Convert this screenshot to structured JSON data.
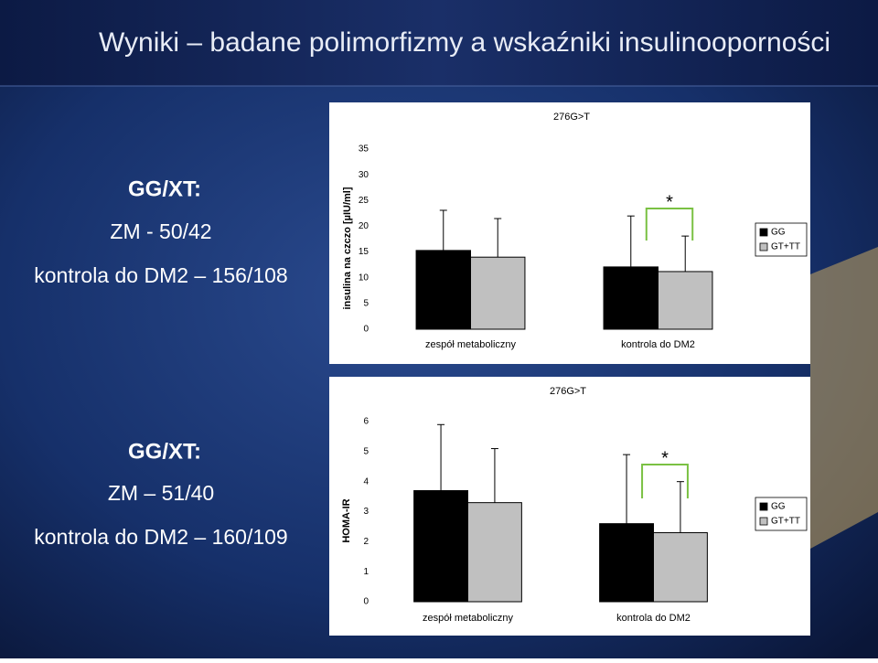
{
  "slide": {
    "title": "Wyniki – badane polimorfizmy a wskaźniki insulinooporności",
    "blocks": [
      {
        "heading": "GG/XT:",
        "lines": [
          "ZM - 50/42",
          "kontrola do DM2 – 156/108"
        ]
      },
      {
        "heading": "GG/XT:",
        "lines": [
          "ZM – 51/40",
          "kontrola do DM2 – 160/109"
        ]
      }
    ]
  },
  "chart_data": [
    {
      "type": "bar",
      "title": "276G>T",
      "y_label": "insulina na czczo [µIU/ml]",
      "categories": [
        "zespół metaboliczny",
        "kontrola do DM2"
      ],
      "series": [
        {
          "name": "GG",
          "color": "#000000",
          "values": [
            15.3,
            12.1
          ],
          "errors": [
            7.8,
            9.9
          ]
        },
        {
          "name": "GT+TT",
          "color": "#c0c0c0",
          "values": [
            14.0,
            11.2
          ],
          "errors": [
            7.5,
            6.9
          ]
        }
      ],
      "ylim": [
        0,
        35
      ],
      "yticks": [
        0,
        5,
        10,
        15,
        20,
        25,
        30,
        35
      ],
      "annotations": [
        "*"
      ],
      "legend": "right",
      "grid": false
    },
    {
      "type": "bar",
      "title": "276G>T",
      "y_label": "HOMA-IR",
      "categories": [
        "zespół metaboliczny",
        "kontrola do DM2"
      ],
      "series": [
        {
          "name": "GG",
          "color": "#000000",
          "values": [
            3.7,
            2.6
          ],
          "errors": [
            2.2,
            2.3
          ]
        },
        {
          "name": "GT+TT",
          "color": "#c0c0c0",
          "values": [
            3.3,
            2.3
          ],
          "errors": [
            1.8,
            1.7
          ]
        }
      ],
      "ylim": [
        0,
        6
      ],
      "yticks": [
        0,
        1,
        2,
        3,
        4,
        5,
        6
      ],
      "annotations": [
        "*"
      ],
      "legend": "right",
      "grid": false
    }
  ]
}
